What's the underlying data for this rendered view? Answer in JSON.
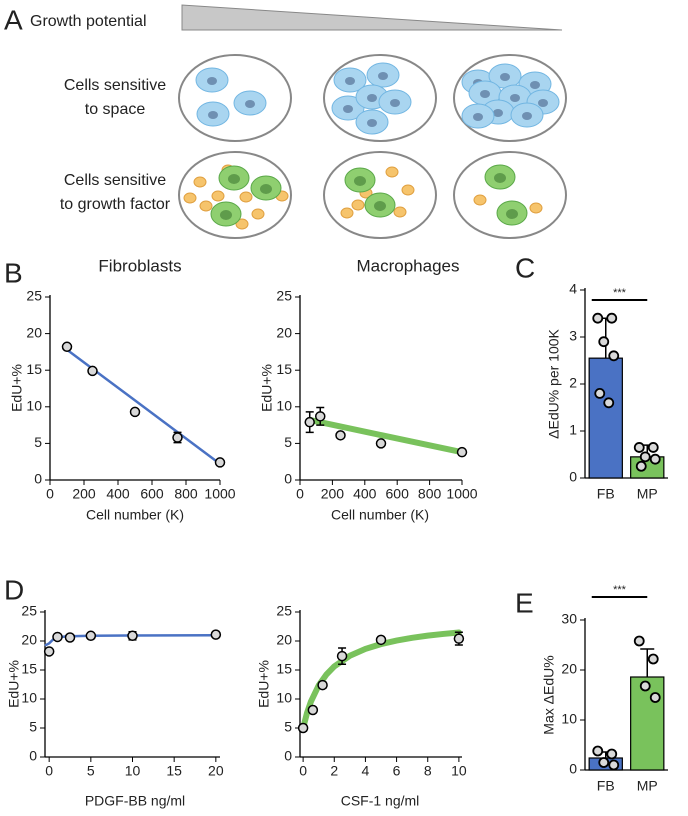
{
  "panel_labels": [
    "A",
    "B",
    "C",
    "D",
    "E"
  ],
  "panel_a": {
    "title": "Growth potential",
    "rows": [
      [
        "Cells sensitive",
        "to space"
      ],
      [
        "Cells sensitive",
        "to growth factor"
      ]
    ]
  },
  "chart_data": [
    {
      "type": "scatter",
      "title": "Fibroblasts",
      "xlabel": "Cell number (K)",
      "ylabel": "EdU+%",
      "color": "#4a72c4",
      "x": [
        100,
        250,
        500,
        750,
        1000
      ],
      "values": [
        18.2,
        14.9,
        9.3,
        5.8,
        2.4
      ],
      "errors": [
        0.3,
        0.3,
        0.3,
        0.7,
        0.3
      ],
      "fit_x": [
        100,
        1000
      ],
      "fit_y": [
        17.8,
        2.2
      ],
      "xlim": [
        0,
        1000
      ],
      "xticks": [
        0,
        200,
        400,
        600,
        800,
        1000
      ],
      "ylim": [
        0,
        25
      ],
      "yticks": [
        0,
        5,
        10,
        15,
        20,
        25
      ]
    },
    {
      "type": "scatter",
      "title": "Macrophages",
      "xlabel": "Cell number (K)",
      "ylabel": "EdU+%",
      "color": "#79c25c",
      "x": [
        60,
        125,
        250,
        500,
        1000
      ],
      "values": [
        7.9,
        8.7,
        6.1,
        5.0,
        3.8
      ],
      "errors": [
        1.4,
        1.2,
        0.3,
        0.3,
        0.3
      ],
      "fit_x": [
        60,
        1000
      ],
      "fit_y": [
        8.2,
        3.8
      ],
      "xlim": [
        0,
        1000
      ],
      "xticks": [
        0,
        200,
        400,
        600,
        800,
        1000
      ],
      "ylim": [
        0,
        25
      ],
      "yticks": [
        0,
        5,
        10,
        15,
        20,
        25
      ]
    },
    {
      "type": "bar",
      "ylabel": "ΔEdU% per 100K",
      "categories": [
        "FB",
        "MP"
      ],
      "colors": [
        "#4a72c4",
        "#79c25c"
      ],
      "values": [
        2.55,
        0.45
      ],
      "errors": [
        0.85,
        0.25
      ],
      "points": [
        [
          3.4,
          3.4,
          2.9,
          2.6,
          1.8,
          1.6
        ],
        [
          0.65,
          0.65,
          0.45,
          0.4,
          0.25
        ]
      ],
      "significance": "***",
      "ylim": [
        0,
        4
      ],
      "yticks": [
        0,
        1,
        2,
        3,
        4
      ]
    },
    {
      "type": "scatter",
      "xlabel": "PDGF-BB ng/ml",
      "ylabel": "EdU+%",
      "color": "#4a72c4",
      "x": [
        0,
        1,
        2.5,
        5,
        10,
        20
      ],
      "values": [
        18.2,
        20.7,
        20.6,
        20.9,
        20.9,
        21.1
      ],
      "errors": [
        0.3,
        0.3,
        0.3,
        0.3,
        0.7,
        0.3
      ],
      "fit_x": [
        -0.4,
        0,
        0.5,
        1,
        2,
        5,
        10,
        20
      ],
      "fit_y": [
        19.3,
        19.6,
        20.3,
        20.6,
        20.8,
        20.9,
        20.95,
        21.0
      ],
      "xlim": [
        -0.5,
        20.5
      ],
      "xticks": [
        0,
        5,
        10,
        15,
        20
      ],
      "ylim": [
        0,
        25
      ],
      "yticks": [
        0,
        5,
        10,
        15,
        20,
        25
      ]
    },
    {
      "type": "scatter",
      "xlabel": "CSF-1 ng/ml",
      "ylabel": "EdU+%",
      "color": "#79c25c",
      "x": [
        0,
        0.625,
        1.25,
        2.5,
        5,
        10
      ],
      "values": [
        5.0,
        8.1,
        12.4,
        17.4,
        20.2,
        20.4
      ],
      "errors": [
        0.5,
        0.3,
        0.5,
        1.4,
        0.3,
        1.1
      ],
      "fit_x": [
        0,
        0.25,
        0.5,
        1,
        1.5,
        2,
        3,
        4,
        5,
        6,
        7,
        8,
        9,
        10
      ],
      "fit_y": [
        5,
        7.58,
        9.55,
        12.35,
        14.24,
        15.61,
        17.46,
        18.64,
        19.47,
        20.08,
        20.55,
        20.92,
        21.22,
        21.47
      ],
      "xlim": [
        -0.2,
        10.2
      ],
      "xticks": [
        0,
        2,
        4,
        6,
        8,
        10
      ],
      "ylim": [
        0,
        25
      ],
      "yticks": [
        0,
        5,
        10,
        15,
        20,
        25
      ]
    },
    {
      "type": "bar",
      "ylabel": "Max  ΔEdU%",
      "categories": [
        "FB",
        "MP"
      ],
      "colors": [
        "#4a72c4",
        "#79c25c"
      ],
      "values": [
        2.4,
        18.6
      ],
      "errors": [
        1.2,
        5.6
      ],
      "points": [
        [
          3.8,
          3.2,
          1.5,
          1.0
        ],
        [
          25.8,
          22.2,
          16.8,
          14.5
        ]
      ],
      "significance": "***",
      "ylim": [
        0,
        30
      ],
      "yticks": [
        0,
        10,
        20,
        30
      ]
    }
  ]
}
